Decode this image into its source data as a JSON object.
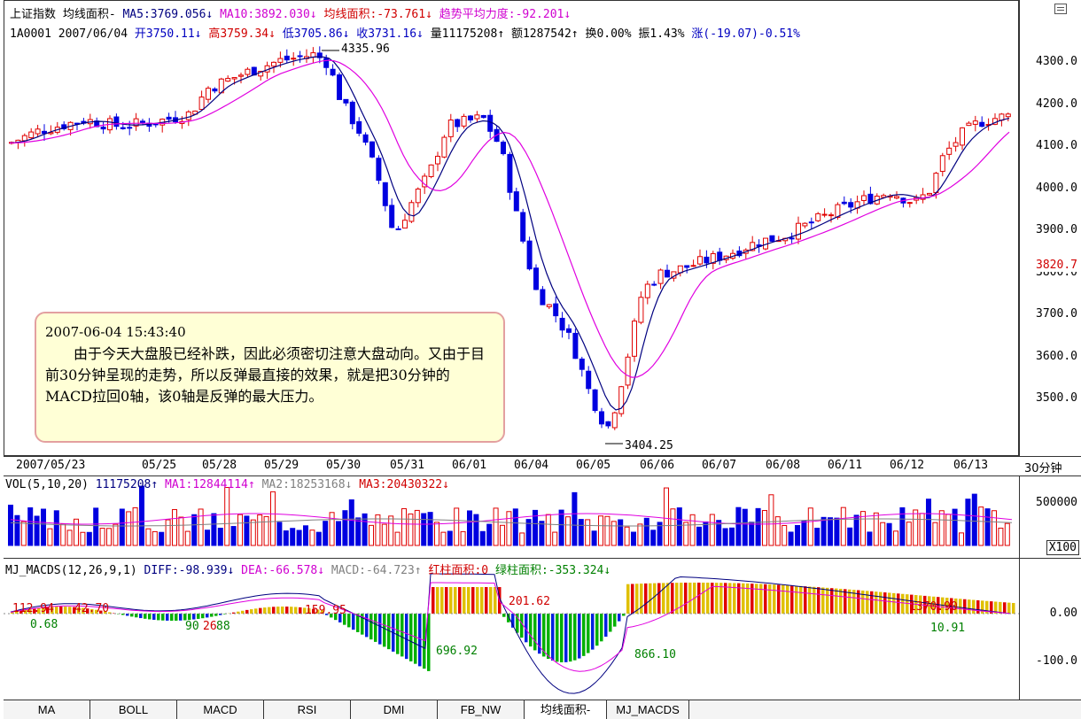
{
  "header": {
    "line1": [
      {
        "text": "上证指数 均线面积-",
        "color": "#000000"
      },
      {
        "text": "MA5:3769.056↓",
        "color": "#000080"
      },
      {
        "text": "MA10:3892.030↓",
        "color": "#d000d0"
      },
      {
        "text": "均线面积:-73.761↓",
        "color": "#d00000"
      },
      {
        "text": "趋势平均力度:-92.201↓",
        "color": "#d000d0"
      }
    ],
    "line2": [
      {
        "text": "1A0001 2007/06/04",
        "color": "#000000"
      },
      {
        "text": "开3750.11↓",
        "color": "#0000c0"
      },
      {
        "text": "高3759.34↓",
        "color": "#d00000"
      },
      {
        "text": "低3705.86↓",
        "color": "#0000c0"
      },
      {
        "text": "收3731.16↓",
        "color": "#0000c0"
      },
      {
        "text": "量11175208↑",
        "color": "#000000"
      },
      {
        "text": "额1287542↑",
        "color": "#000000"
      },
      {
        "text": "换0.00%",
        "color": "#000000"
      },
      {
        "text": "振1.43%",
        "color": "#000000"
      },
      {
        "text": "涨(-19.07)-0.51%",
        "color": "#0000c0"
      }
    ]
  },
  "price_axis": {
    "ticks": [
      "4300.0",
      "4200.0",
      "4100.0",
      "4000.0",
      "3900.0",
      "3800.0",
      "3700.0",
      "3600.0",
      "3500.0"
    ],
    "current": "3820.7",
    "current_color": "#d00000"
  },
  "chart_annotations": {
    "high": "4335.96",
    "low": "3404.25"
  },
  "annotation_box": {
    "timestamp": "2007-06-04 15:43:40",
    "text": "由于今天大盘股已经补跌，因此必须密切注意大盘动向。又由于目前30分钟呈现的走势，所以反弹最直接的效果，就是把30分钟的MACD拉回0轴，该0轴是反弹的最大压力。"
  },
  "date_axis": {
    "labels": [
      "2007/05/23",
      "05/25",
      "05/28",
      "05/29",
      "05/30",
      "05/31",
      "06/01",
      "06/04",
      "06/05",
      "06/06",
      "06/07",
      "06/08",
      "06/11",
      "06/12",
      "06/13"
    ],
    "period": "30分钟"
  },
  "volume": {
    "header": [
      {
        "text": "VOL(5,10,20)",
        "color": "#000000"
      },
      {
        "text": "11175208↑",
        "color": "#000080"
      },
      {
        "text": "MA1:12844114↑",
        "color": "#d000d0"
      },
      {
        "text": "MA2:18253168↓",
        "color": "#808080"
      },
      {
        "text": "MA3:20430322↓",
        "color": "#d00000"
      }
    ],
    "axis_label": "500000",
    "unit": "X100"
  },
  "macd": {
    "header": [
      {
        "text": "MJ_MACDS(12,26,9,1)",
        "color": "#000000"
      },
      {
        "text": "DIFF:-98.939↓",
        "color": "#000080"
      },
      {
        "text": "DEA:-66.578↓",
        "color": "#d000d0"
      },
      {
        "text": "MACD:-64.723↑",
        "color": "#808080"
      },
      {
        "text": "红柱面积:0",
        "color": "#d00000"
      },
      {
        "text": "绿柱面积:-353.324↓",
        "color": "#008000"
      }
    ],
    "axis_labels": [
      "0.00",
      "-100.0"
    ],
    "annotations": [
      {
        "text": "112.94",
        "color": "#d00000"
      },
      {
        "text": "0.68",
        "color": "#008000"
      },
      {
        "text": "42.70",
        "color": "#d00000"
      },
      {
        "text": "90",
        "color": "#008000"
      },
      {
        "text": "26",
        "color": "#d00000"
      },
      {
        "text": "88",
        "color": "#008000"
      },
      {
        "text": "159.95",
        "color": "#d00000"
      },
      {
        "text": "696.92",
        "color": "#008000"
      },
      {
        "text": "201.62",
        "color": "#d00000"
      },
      {
        "text": "866.10",
        "color": "#008000"
      },
      {
        "text": "1370.90",
        "color": "#d00000"
      },
      {
        "text": "10.91",
        "color": "#008000"
      }
    ]
  },
  "tabs": [
    "MA",
    "BOLL",
    "MACD",
    "RSI",
    "DMI",
    "FB_NW",
    "均线面积-",
    "MJ_MACDS"
  ],
  "active_tab": "均线面积-",
  "colors": {
    "up": "#e00000",
    "down": "#0000e0",
    "ma5": "#000080",
    "ma10": "#e000e0",
    "hist_red": "#e00000",
    "hist_yellow": "#e0c000",
    "hist_blue": "#0020e0",
    "hist_green": "#00b000"
  }
}
